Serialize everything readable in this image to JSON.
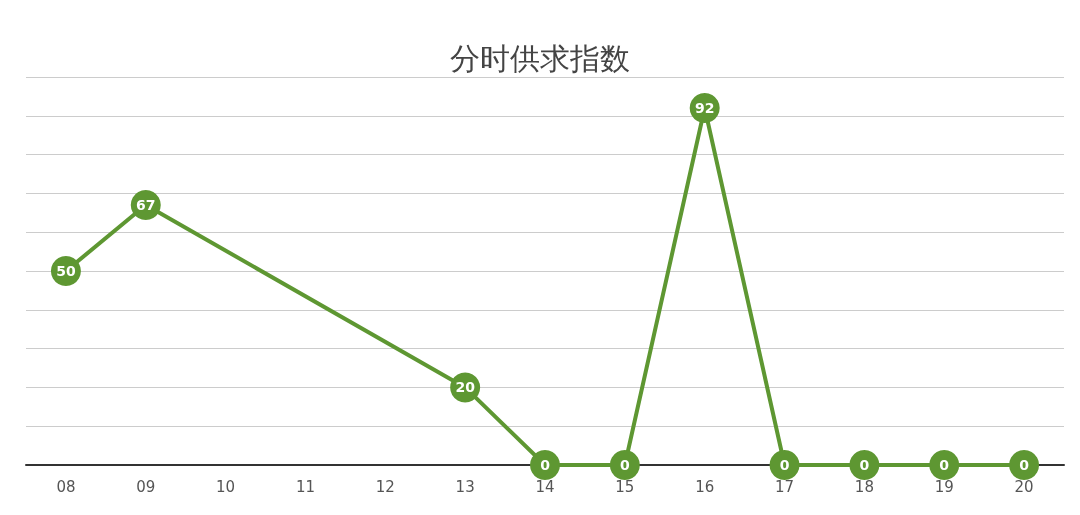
{
  "chart_data": {
    "type": "line",
    "title": "分时供求指数",
    "categories": [
      "08",
      "09",
      "10",
      "11",
      "12",
      "13",
      "14",
      "15",
      "16",
      "17",
      "18",
      "19",
      "20"
    ],
    "series": [
      {
        "color": "#5e9732",
        "values": [
          50,
          67,
          null,
          null,
          null,
          20,
          0,
          0,
          92,
          0,
          0,
          0,
          0
        ]
      }
    ],
    "ylim": [
      0,
      100
    ],
    "yticks": [
      {
        "value": 0,
        "label": null
      },
      {
        "value": 10,
        "label": null
      },
      {
        "value": 20,
        "label": null
      },
      {
        "value": 30,
        "label": null
      },
      {
        "value": 40,
        "label": null
      },
      {
        "value": 50,
        "label": null
      },
      {
        "value": 60,
        "label": null
      },
      {
        "value": 70,
        "label": null
      },
      {
        "value": 80,
        "label": null
      },
      {
        "value": 90,
        "label": null
      },
      {
        "value": 100,
        "label": null
      }
    ],
    "grid": "y",
    "tick_labels": "x",
    "data_labels": true,
    "marker": "circle",
    "line_style": "solid"
  }
}
